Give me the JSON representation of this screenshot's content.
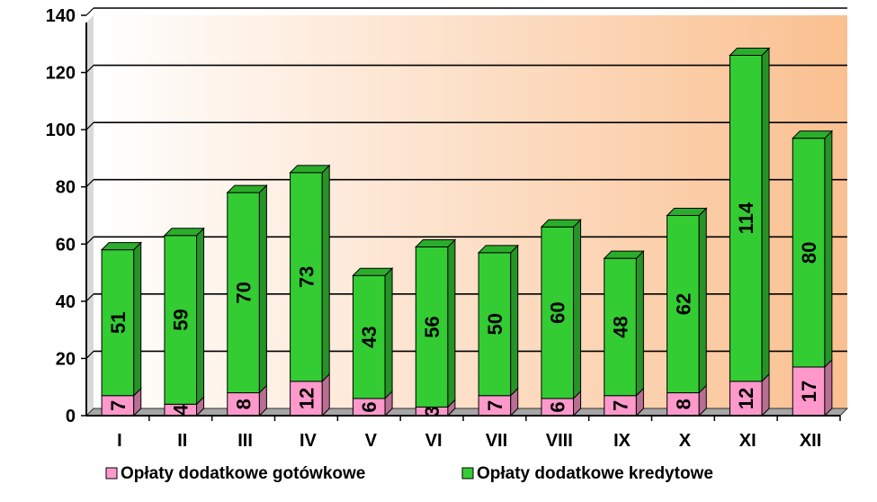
{
  "chart_data": {
    "type": "bar",
    "stacked": true,
    "categories": [
      "I",
      "II",
      "III",
      "IV",
      "V",
      "VI",
      "VII",
      "VIII",
      "IX",
      "X",
      "XI",
      "XII"
    ],
    "series": [
      {
        "name": "Opłaty dodatkowe gotówkowe",
        "values": [
          7,
          4,
          8,
          12,
          6,
          3,
          7,
          6,
          7,
          8,
          12,
          17
        ],
        "color": "#ff99cc"
      },
      {
        "name": "Opłaty dodatkowe kredytowe",
        "values": [
          51,
          59,
          70,
          73,
          43,
          56,
          50,
          60,
          48,
          62,
          114,
          80
        ],
        "color": "#33cc33"
      }
    ],
    "ylim": [
      0,
      140
    ],
    "yticks": [
      0,
      20,
      40,
      60,
      80,
      100,
      120,
      140
    ],
    "grid": true,
    "legend_position": "bottom",
    "background_gradient": [
      "#ffffff",
      "#fac090"
    ]
  }
}
